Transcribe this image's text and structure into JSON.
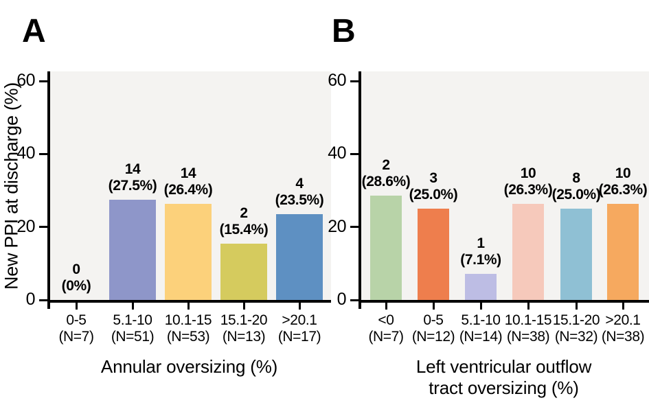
{
  "chart_data": [
    {
      "type": "bar",
      "panel": "A",
      "ylabel": "New PPI at discharge (%)",
      "xlabel": "Annular oversizing (%)",
      "xlabel_lines": [
        "Annular oversizing (%)"
      ],
      "ylim": [
        0,
        60
      ],
      "yticks": [
        0,
        20,
        40,
        60
      ],
      "grid": false,
      "legend": "none",
      "plot_background": "#f4f3f1",
      "axis_color": "#000000",
      "categories": [
        "0-5",
        "5.1-10",
        "10.1-15",
        "15.1-20",
        ">20.1"
      ],
      "category_n_labels": [
        "(N=7)",
        "(N=51)",
        "(N=53)",
        "(N=13)",
        "(N=17)"
      ],
      "counts": [
        0,
        14,
        14,
        2,
        4
      ],
      "values_pct": [
        0,
        27.5,
        26.4,
        15.4,
        23.5
      ],
      "bar_value_labels": [
        "0",
        "14",
        "14",
        "2",
        "4"
      ],
      "bar_pct_labels": [
        "(0%)",
        "(27.5%)",
        "(26.4%)",
        "(15.4%)",
        "(23.5%)"
      ],
      "bar_colors": [
        "none",
        "#8e96c9",
        "#fcd17b",
        "#d5cb5e",
        "#5e90c2"
      ]
    },
    {
      "type": "bar",
      "panel": "B",
      "ylabel": "New PPI at discharge (%)",
      "xlabel": "Left ventricular outflow tract oversizing (%)",
      "xlabel_lines": [
        "Left ventricular outflow",
        "tract oversizing (%)"
      ],
      "ylim": [
        0,
        60
      ],
      "yticks": [
        0,
        20,
        40,
        60
      ],
      "grid": false,
      "legend": "none",
      "plot_background": "#f4f3f1",
      "axis_color": "#000000",
      "categories": [
        "<0",
        "0-5",
        "5.1-10",
        "10.1-15",
        "15.1-20",
        ">20.1"
      ],
      "category_n_labels": [
        "(N=7)",
        "(N=12)",
        "(N=14)",
        "(N=38)",
        "(N=32)",
        "(N=38)"
      ],
      "counts": [
        2,
        3,
        1,
        10,
        8,
        10
      ],
      "values_pct": [
        28.6,
        25.0,
        7.1,
        26.3,
        25.0,
        26.3
      ],
      "bar_value_labels": [
        "2",
        "3",
        "1",
        "10",
        "8",
        "10"
      ],
      "bar_pct_labels": [
        "(28.6%)",
        "(25.0%)",
        "(7.1%)",
        "(26.3%)",
        "(25.0%)",
        "(26.3%)"
      ],
      "bar_colors": [
        "#b8d3a8",
        "#ee7e4d",
        "#bdbde4",
        "#f6c9bb",
        "#8fc0d4",
        "#f6a95f"
      ]
    }
  ]
}
